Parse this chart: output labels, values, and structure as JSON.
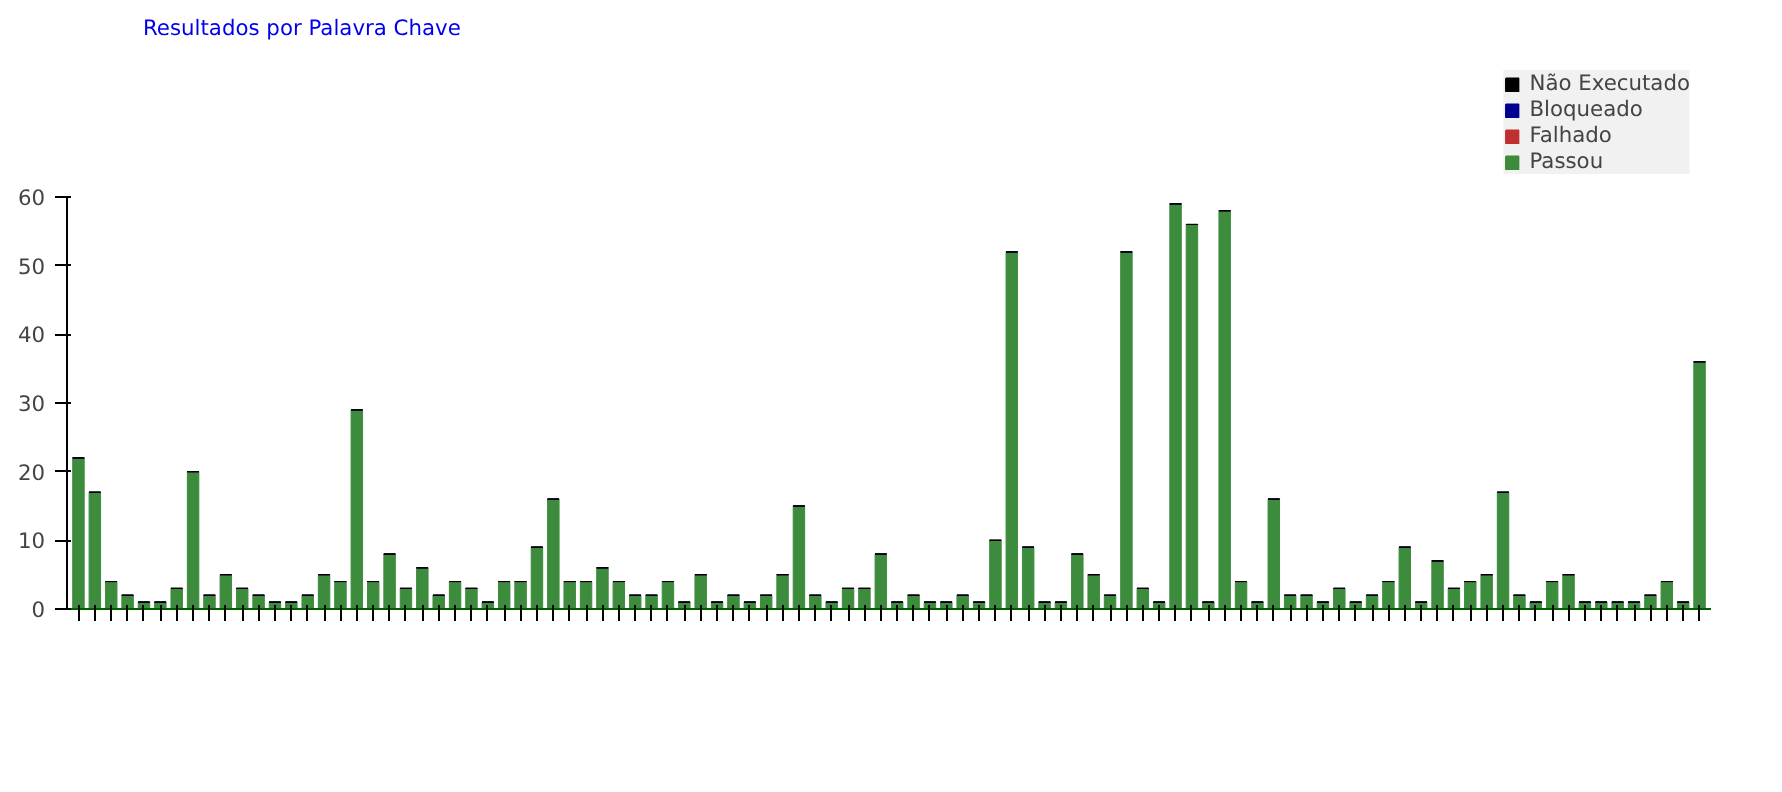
{
  "chart_data": {
    "type": "bar",
    "title": "Resultados por Palavra Chave",
    "stacked": true,
    "legend": "top right",
    "grid": false,
    "categories": [
      null,
      null,
      null,
      null,
      null,
      null,
      null,
      null,
      null,
      null,
      null,
      null,
      null,
      null,
      null,
      null,
      null,
      null,
      null,
      null,
      null,
      null,
      null,
      null,
      null,
      null,
      null,
      null,
      null,
      null,
      null,
      null,
      null,
      null,
      null,
      null,
      null,
      null,
      null,
      null,
      null,
      null,
      null,
      null,
      null,
      null,
      null,
      null,
      null,
      null,
      null,
      null,
      null,
      null,
      null,
      null,
      null,
      null,
      null,
      null,
      null,
      null,
      null,
      null,
      null,
      null,
      null,
      null,
      null,
      null,
      null,
      null,
      null,
      null,
      null,
      null,
      null,
      null,
      null,
      null,
      null,
      null,
      null,
      null,
      null,
      null,
      null,
      null,
      null,
      null,
      null,
      null,
      null,
      null,
      null,
      null,
      null,
      null,
      null,
      null
    ],
    "ylim": [
      0,
      60
    ],
    "yticks": [
      0,
      10,
      20,
      30,
      40,
      50,
      60
    ],
    "series": [
      {
        "name": "Passou",
        "color": "#3d8b3d",
        "values": [
          22,
          17,
          4,
          2,
          1,
          1,
          3,
          20,
          2,
          5,
          3,
          2,
          1,
          1,
          2,
          5,
          4,
          29,
          4,
          8,
          3,
          6,
          2,
          4,
          3,
          1,
          4,
          4,
          9,
          16,
          4,
          4,
          6,
          4,
          2,
          2,
          4,
          1,
          5,
          1,
          2,
          1,
          2,
          5,
          15,
          2,
          1,
          3,
          3,
          8,
          1,
          2,
          1,
          1,
          2,
          1,
          10,
          52,
          9,
          1,
          1,
          8,
          5,
          2,
          52,
          3,
          1,
          59,
          56,
          1,
          58,
          4,
          1,
          16,
          2,
          2,
          1,
          3,
          1,
          2,
          4,
          9,
          1,
          7,
          3,
          4,
          5,
          17,
          2,
          1,
          4,
          5,
          1,
          1,
          1,
          1,
          2,
          4,
          1,
          36
        ]
      },
      {
        "name": "Falhado",
        "color": "#c03030",
        "values": [
          0,
          0,
          0,
          0,
          0,
          0,
          0,
          0,
          0,
          0,
          0,
          0,
          0,
          0,
          0,
          0,
          0,
          0,
          0,
          0,
          0,
          0,
          0,
          0,
          0,
          0,
          0,
          0,
          0,
          0,
          0,
          0,
          0,
          0,
          0,
          0,
          0,
          0,
          0,
          0,
          0,
          0,
          0,
          0,
          0,
          0,
          0,
          0,
          0,
          0,
          0,
          0,
          0,
          0,
          0,
          0,
          0,
          0,
          0,
          0,
          0,
          0,
          0,
          0,
          0,
          0,
          0,
          0,
          0,
          0,
          0,
          0,
          0,
          0,
          0,
          0,
          0,
          0,
          0,
          0,
          0,
          0,
          0,
          0,
          0,
          0,
          0,
          0,
          0,
          0,
          0,
          0,
          0,
          0,
          0,
          0,
          0,
          0,
          0,
          0
        ]
      },
      {
        "name": "Bloqueado",
        "color": "#000090",
        "values": [
          0,
          0,
          0,
          0,
          0,
          0,
          0,
          0,
          0,
          0,
          0,
          0,
          0,
          0,
          0,
          0,
          0,
          0,
          0,
          0,
          0,
          0,
          0,
          0,
          0,
          0,
          0,
          0,
          0,
          0,
          0,
          0,
          0,
          0,
          0,
          0,
          0,
          0,
          0,
          0,
          0,
          0,
          0,
          0,
          0,
          0,
          0,
          0,
          0,
          0,
          0,
          0,
          0,
          0,
          0,
          0,
          0,
          0,
          0,
          0,
          0,
          0,
          0,
          0,
          0,
          0,
          0,
          0,
          0,
          0,
          0,
          0,
          0,
          0,
          0,
          0,
          0,
          0,
          0,
          0,
          0,
          0,
          0,
          0,
          0,
          0,
          0,
          0,
          0,
          0,
          0,
          0,
          0,
          0,
          0,
          0,
          0,
          0,
          0,
          0
        ]
      },
      {
        "name": "Não Executado",
        "color": "#000000",
        "values": [
          0,
          0,
          0,
          0,
          0,
          0,
          0,
          0,
          0,
          0,
          0,
          0,
          0,
          0,
          0,
          0,
          0,
          0,
          0,
          0,
          0,
          0,
          0,
          0,
          0,
          0,
          0,
          0,
          0,
          0,
          0,
          0,
          0,
          0,
          0,
          0,
          0,
          0,
          0,
          0,
          0,
          0,
          0,
          0,
          0,
          0,
          0,
          0,
          0,
          0,
          0,
          0,
          0,
          0,
          0,
          0,
          0,
          0,
          0,
          0,
          0,
          0,
          0,
          0,
          0,
          0,
          0,
          0,
          0,
          0,
          0,
          0,
          0,
          0,
          0,
          0,
          0,
          0,
          0,
          0,
          0,
          0,
          0,
          0,
          0,
          0,
          0,
          0,
          0,
          0,
          0,
          0,
          0,
          0,
          0,
          0,
          0,
          0,
          0,
          0
        ]
      }
    ]
  }
}
